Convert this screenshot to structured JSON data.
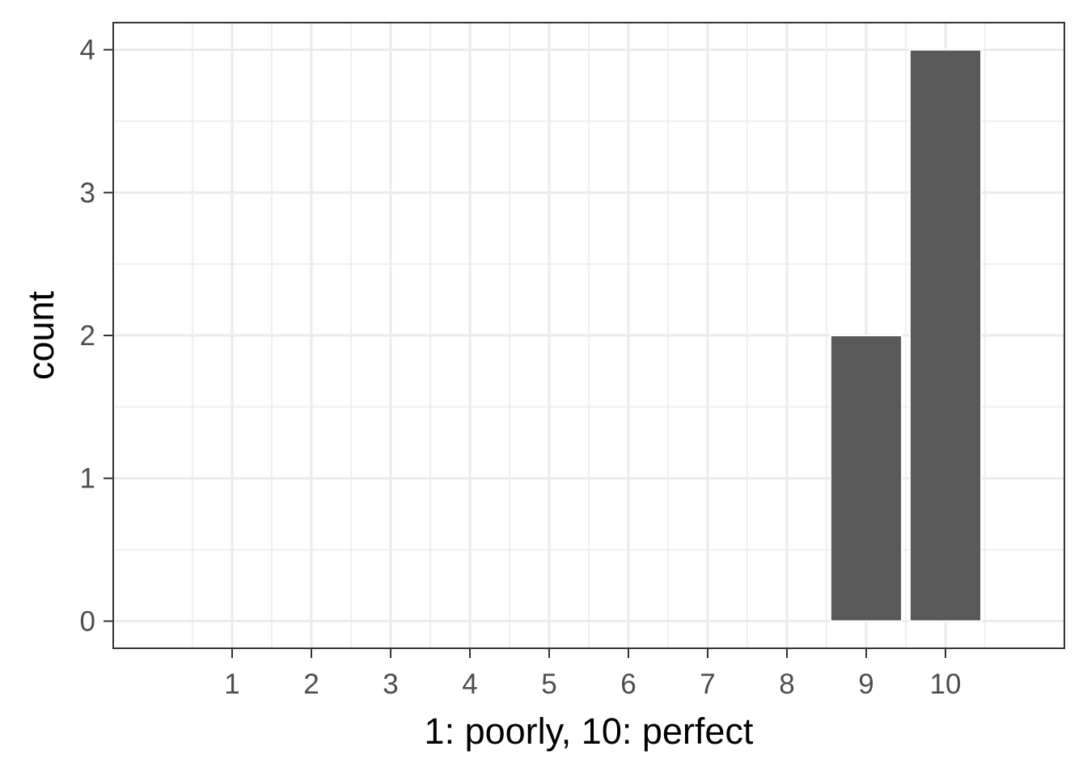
{
  "chart_data": {
    "type": "bar",
    "categories": [
      1,
      2,
      3,
      4,
      5,
      6,
      7,
      8,
      9,
      10
    ],
    "values": [
      0,
      0,
      0,
      0,
      0,
      0,
      0,
      0,
      2,
      4
    ],
    "title": "",
    "xlabel": "1: poorly, 10: perfect",
    "ylabel": "count",
    "xlim": [
      -0.5,
      11.5
    ],
    "ylim": [
      -0.19,
      4.19
    ],
    "yticks": [
      0,
      1,
      2,
      3,
      4
    ],
    "grid": true,
    "bar_color": "#595959"
  }
}
